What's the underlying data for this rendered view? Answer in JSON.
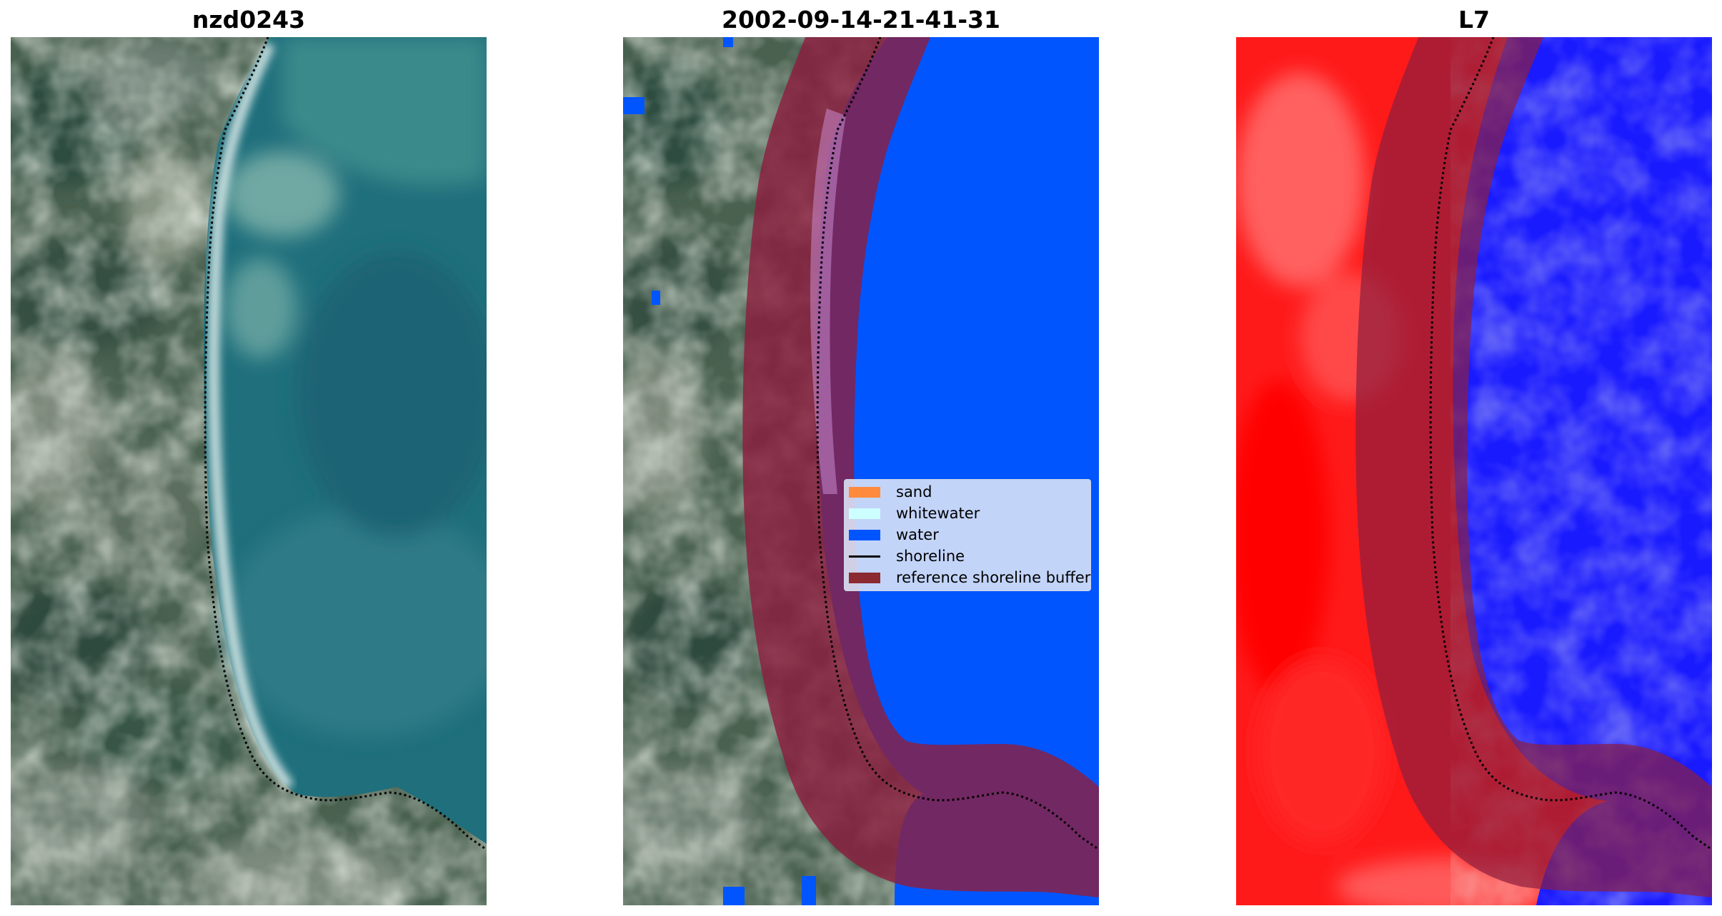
{
  "figure": {
    "panels": [
      {
        "title": "nzd0243"
      },
      {
        "title": "2002-09-14-21-41-31"
      },
      {
        "title": "L7"
      }
    ],
    "legend": {
      "entries": [
        {
          "label": "sand",
          "color": "#ff8a3d"
        },
        {
          "label": "whitewater",
          "color": "#ccffff"
        },
        {
          "label": "water",
          "color": "#0055ff"
        },
        {
          "label": "shoreline",
          "color": "#000000"
        },
        {
          "label": "reference shoreline buffer",
          "color": "#8b2a31"
        }
      ]
    },
    "colors": {
      "water_class": "#0055ff",
      "buffer": "#7a1e3a",
      "land_index": "#ff1a1a",
      "water_index": "#1a1aff"
    }
  }
}
